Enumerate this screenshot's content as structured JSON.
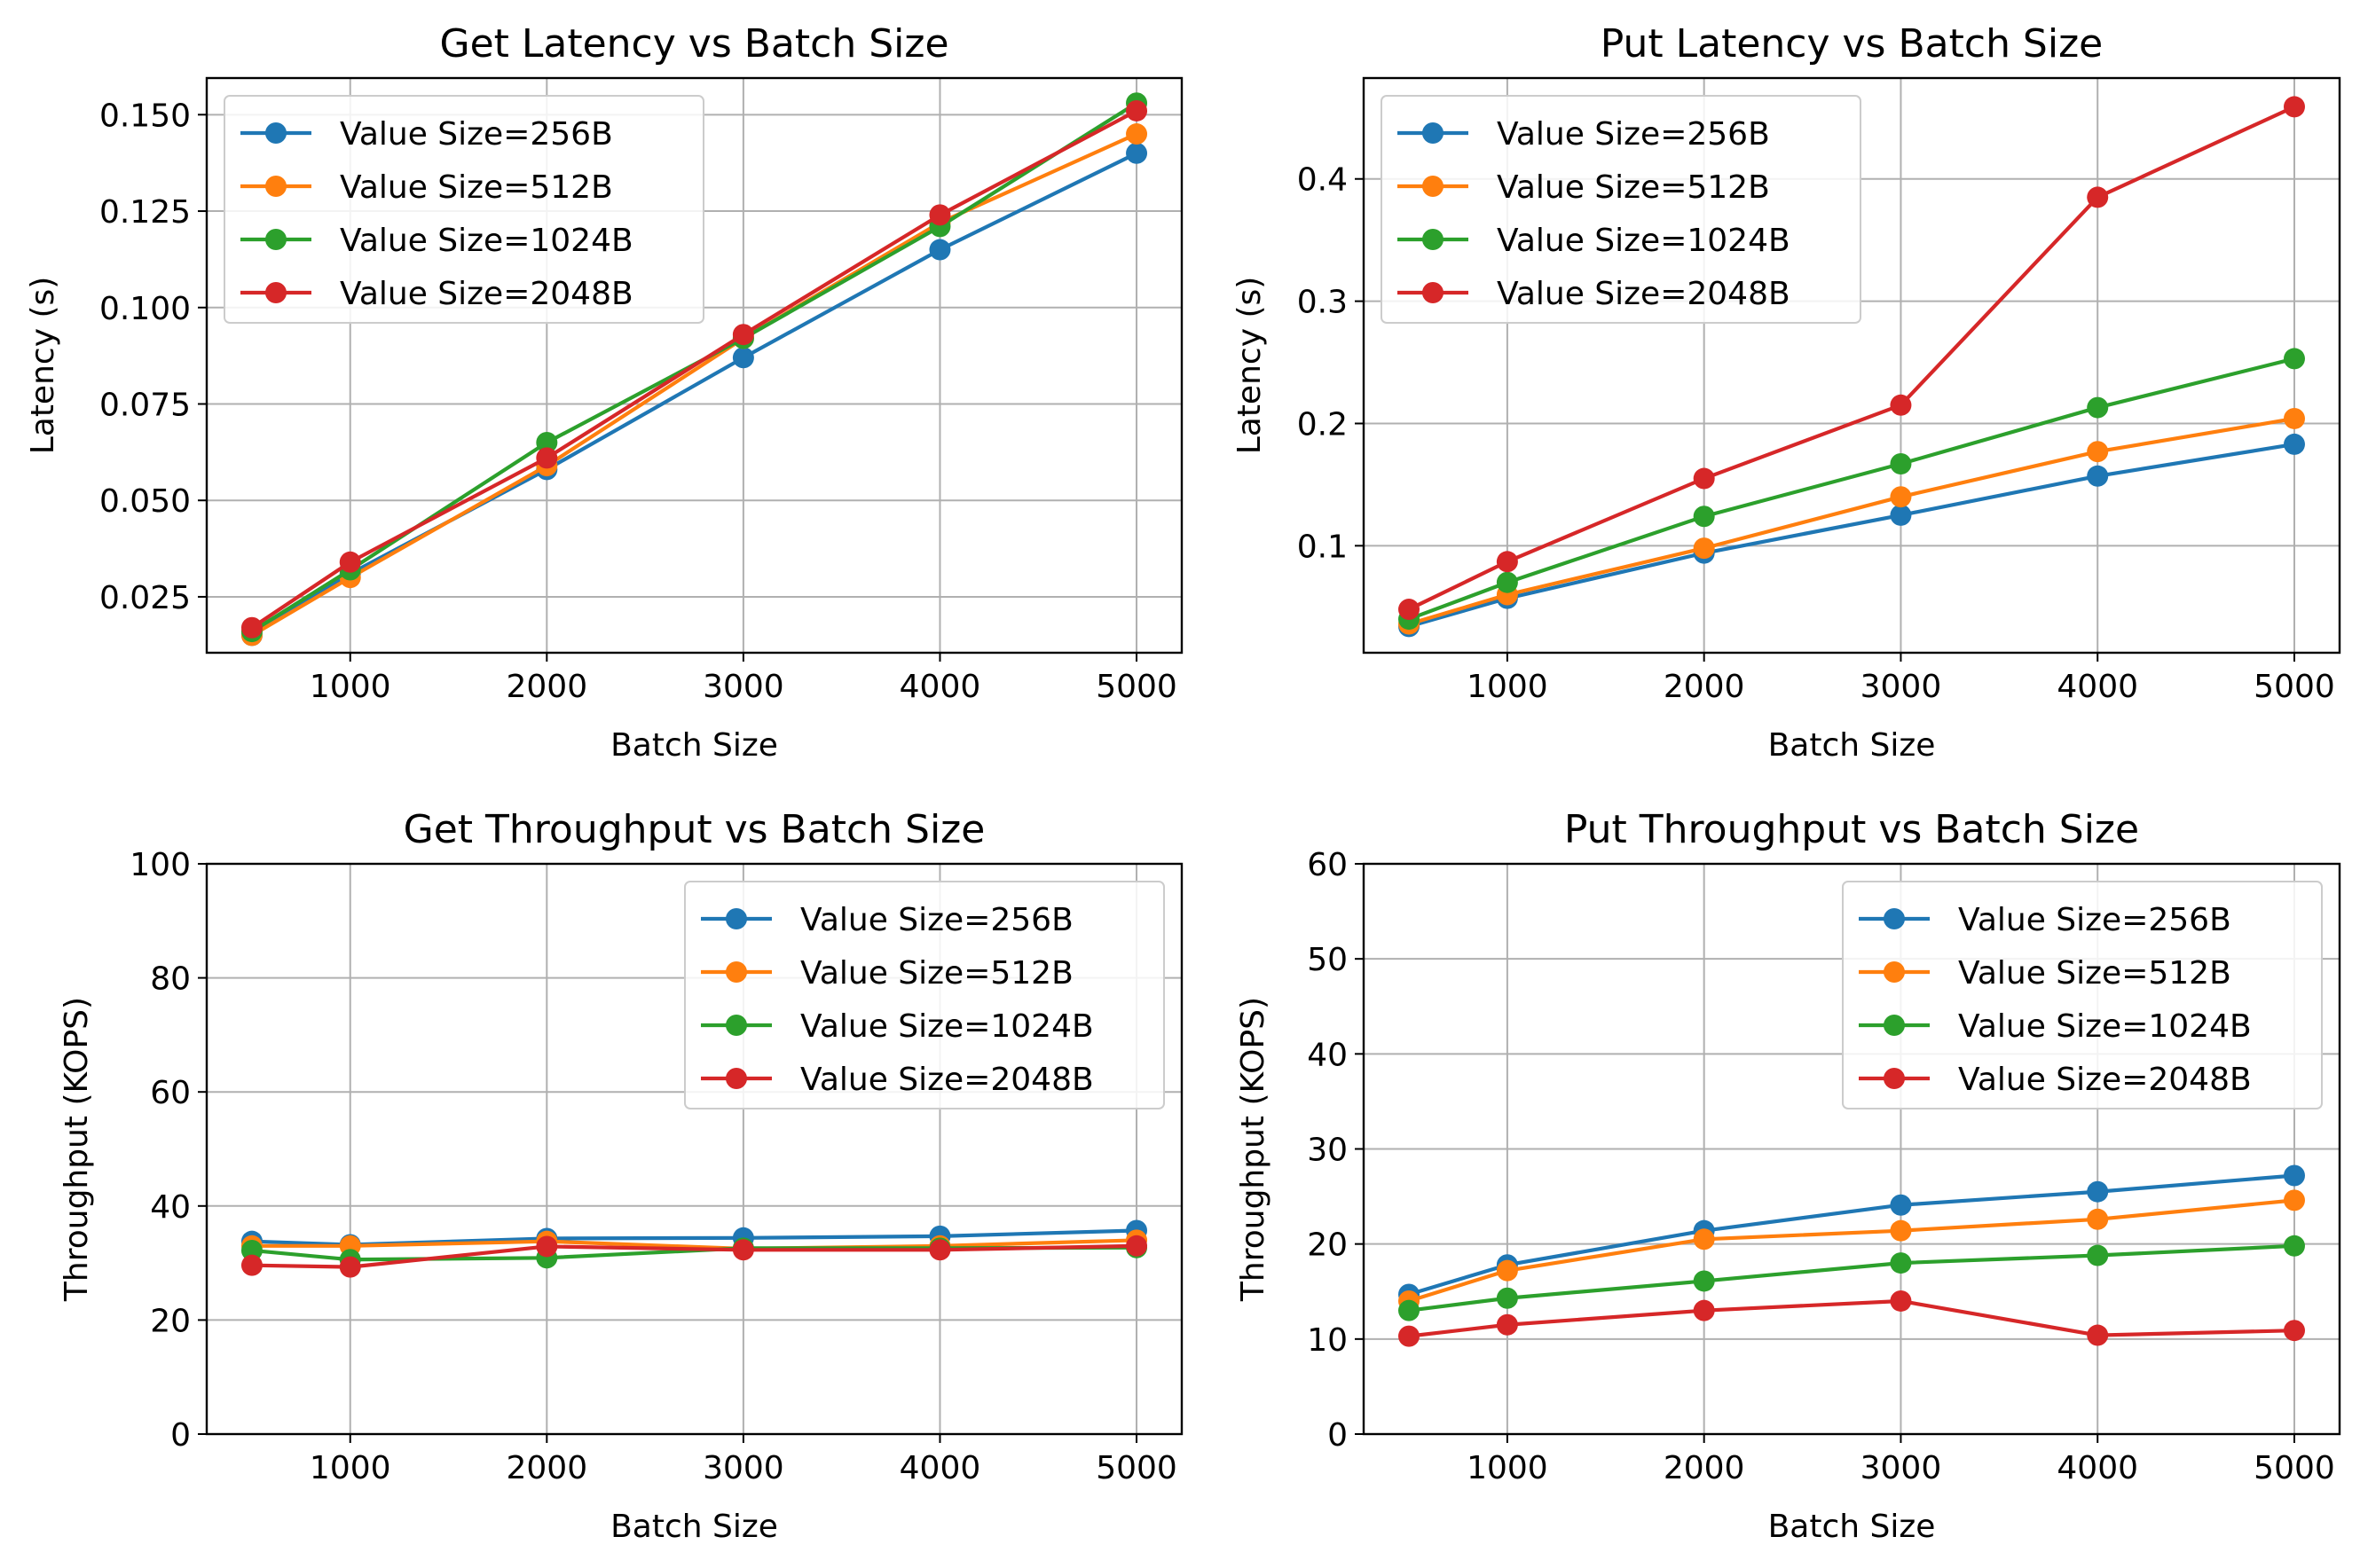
{
  "colors": {
    "series": [
      "#1f77b4",
      "#ff7f0e",
      "#2ca02c",
      "#d62728"
    ],
    "grid": "#b0b0b0",
    "axes": "#000000",
    "legend_border": "#cccccc"
  },
  "chart_data": [
    {
      "type": "line",
      "title": "Get Latency vs Batch Size",
      "xlabel": "Batch Size",
      "ylabel": "Latency (s)",
      "grid": true,
      "legend_position": "top-left",
      "xlim": [
        270,
        5230
      ],
      "ylim": [
        0.0105,
        0.1595
      ],
      "xticks": [
        1000,
        2000,
        3000,
        4000,
        5000
      ],
      "xtick_labels": [
        "1000",
        "2000",
        "3000",
        "4000",
        "5000"
      ],
      "yticks": [
        0.025,
        0.05,
        0.075,
        0.1,
        0.125,
        0.15
      ],
      "ytick_labels": [
        "0.025",
        "0.050",
        "0.075",
        "0.100",
        "0.125",
        "0.150"
      ],
      "x": [
        500,
        1000,
        2000,
        3000,
        4000,
        5000
      ],
      "series": [
        {
          "name": "Value Size=256B",
          "values": [
            0.015,
            0.031,
            0.058,
            0.087,
            0.115,
            0.14
          ]
        },
        {
          "name": "Value Size=512B",
          "values": [
            0.015,
            0.03,
            0.059,
            0.092,
            0.122,
            0.145
          ]
        },
        {
          "name": "Value Size=1024B",
          "values": [
            0.016,
            0.032,
            0.065,
            0.092,
            0.121,
            0.153
          ]
        },
        {
          "name": "Value Size=2048B",
          "values": [
            0.017,
            0.034,
            0.061,
            0.093,
            0.124,
            0.151
          ]
        }
      ]
    },
    {
      "type": "line",
      "title": "Put Latency vs Batch Size",
      "xlabel": "Batch Size",
      "ylabel": "Latency (s)",
      "grid": true,
      "legend_position": "top-left",
      "xlim": [
        270,
        5230
      ],
      "ylim": [
        0.0125,
        0.4825
      ],
      "xticks": [
        1000,
        2000,
        3000,
        4000,
        5000
      ],
      "xtick_labels": [
        "1000",
        "2000",
        "3000",
        "4000",
        "5000"
      ],
      "yticks": [
        0.1,
        0.2,
        0.3,
        0.4
      ],
      "ytick_labels": [
        "0.1",
        "0.2",
        "0.3",
        "0.4"
      ],
      "x": [
        500,
        1000,
        2000,
        3000,
        4000,
        5000
      ],
      "series": [
        {
          "name": "Value Size=256B",
          "values": [
            0.034,
            0.057,
            0.094,
            0.125,
            0.157,
            0.183
          ]
        },
        {
          "name": "Value Size=512B",
          "values": [
            0.036,
            0.06,
            0.098,
            0.14,
            0.177,
            0.204
          ]
        },
        {
          "name": "Value Size=1024B",
          "values": [
            0.04,
            0.07,
            0.124,
            0.167,
            0.213,
            0.253
          ]
        },
        {
          "name": "Value Size=2048B",
          "values": [
            0.048,
            0.087,
            0.155,
            0.215,
            0.385,
            0.459
          ]
        }
      ]
    },
    {
      "type": "line",
      "title": "Get Throughput vs Batch Size",
      "xlabel": "Batch Size",
      "ylabel": "Throughput (KOPS)",
      "grid": true,
      "legend_position": "top-right",
      "xlim": [
        270,
        5230
      ],
      "ylim": [
        0,
        100
      ],
      "xticks": [
        1000,
        2000,
        3000,
        4000,
        5000
      ],
      "xtick_labels": [
        "1000",
        "2000",
        "3000",
        "4000",
        "5000"
      ],
      "yticks": [
        0,
        20,
        40,
        60,
        80,
        100
      ],
      "ytick_labels": [
        "0",
        "20",
        "40",
        "60",
        "80",
        "100"
      ],
      "x": [
        500,
        1000,
        2000,
        3000,
        4000,
        5000
      ],
      "series": [
        {
          "name": "Value Size=256B",
          "values": [
            33.8,
            33.2,
            34.3,
            34.4,
            34.7,
            35.7
          ]
        },
        {
          "name": "Value Size=512B",
          "values": [
            33.0,
            33.0,
            33.8,
            32.5,
            33.0,
            34.0
          ]
        },
        {
          "name": "Value Size=1024B",
          "values": [
            32.2,
            30.6,
            30.9,
            32.6,
            32.6,
            32.7
          ]
        },
        {
          "name": "Value Size=2048B",
          "values": [
            29.6,
            29.3,
            32.9,
            32.3,
            32.3,
            33.0
          ]
        }
      ]
    },
    {
      "type": "line",
      "title": "Put Throughput vs Batch Size",
      "xlabel": "Batch Size",
      "ylabel": "Throughput (KOPS)",
      "grid": true,
      "legend_position": "top-right",
      "xlim": [
        270,
        5230
      ],
      "ylim": [
        0,
        60
      ],
      "xticks": [
        1000,
        2000,
        3000,
        4000,
        5000
      ],
      "xtick_labels": [
        "1000",
        "2000",
        "3000",
        "4000",
        "5000"
      ],
      "yticks": [
        0,
        10,
        20,
        30,
        40,
        50,
        60
      ],
      "ytick_labels": [
        "0",
        "10",
        "20",
        "30",
        "40",
        "50",
        "60"
      ],
      "x": [
        500,
        1000,
        2000,
        3000,
        4000,
        5000
      ],
      "series": [
        {
          "name": "Value Size=256B",
          "values": [
            14.7,
            17.8,
            21.4,
            24.1,
            25.5,
            27.2
          ]
        },
        {
          "name": "Value Size=512B",
          "values": [
            14.0,
            17.2,
            20.5,
            21.4,
            22.6,
            24.6
          ]
        },
        {
          "name": "Value Size=1024B",
          "values": [
            13.0,
            14.3,
            16.1,
            18.0,
            18.8,
            19.8
          ]
        },
        {
          "name": "Value Size=2048B",
          "values": [
            10.3,
            11.5,
            13.0,
            14.0,
            10.4,
            10.9
          ]
        }
      ]
    }
  ]
}
